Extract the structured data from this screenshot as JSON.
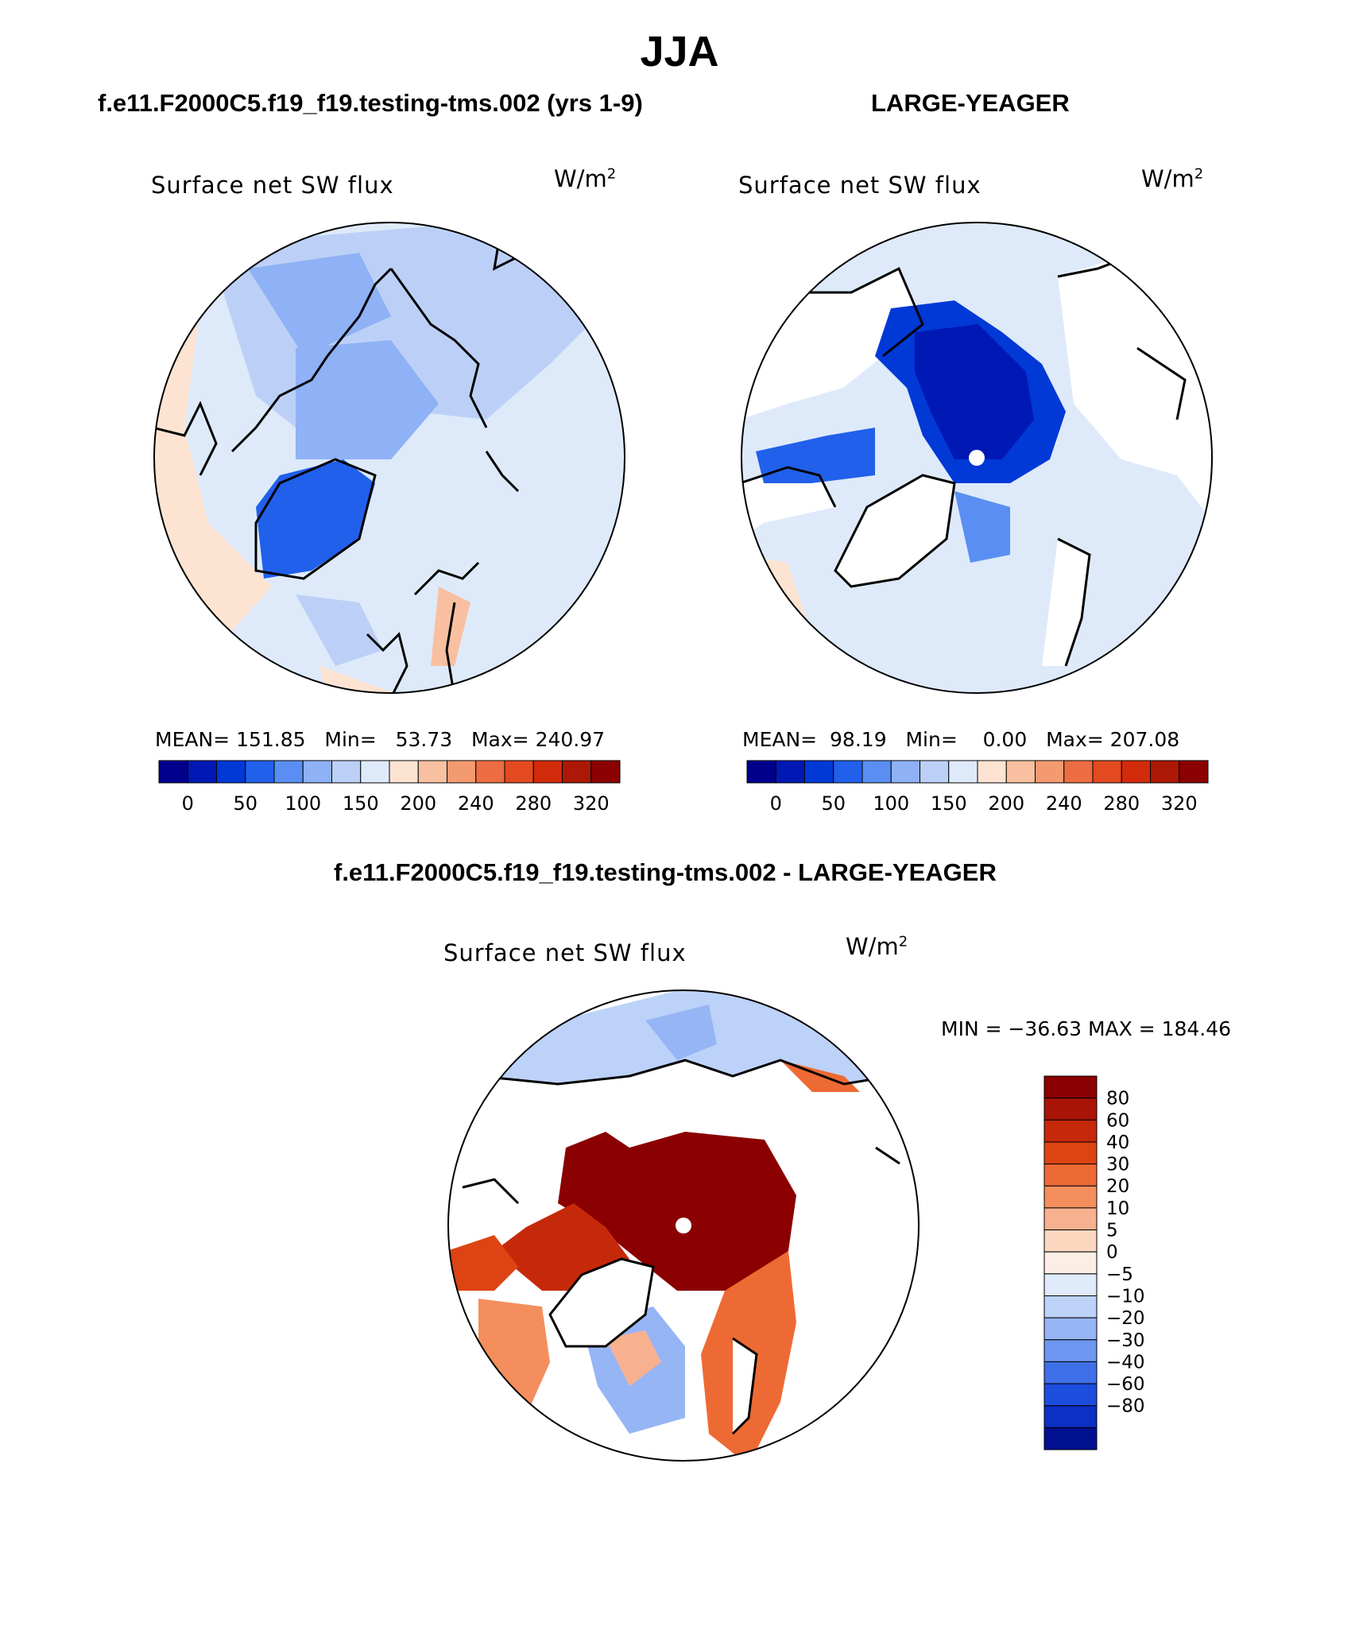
{
  "page_title": "JJA",
  "chart_data": [
    {
      "type": "heatmap",
      "panel": "model",
      "header": "f.e11.F2000C5.f19_f19.testing-tms.002 (yrs 1-9)",
      "title": "Surface net SW flux",
      "units": "W/m",
      "units_exp": "2",
      "stats": {
        "mean_label": "MEAN=",
        "mean": "151.85",
        "min_label": "Min=",
        "min": "53.73",
        "max_label": "Max=",
        "max": "240.97"
      },
      "colorbar": {
        "orientation": "horizontal",
        "ticks": [
          "0",
          "50",
          "100",
          "150",
          "200",
          "240",
          "280",
          "320"
        ],
        "colors": [
          "#00008c",
          "#0018b4",
          "#0039d6",
          "#2160ea",
          "#5a8ef2",
          "#8fb1f5",
          "#bcd0f7",
          "#deeafa",
          "#fde4d2",
          "#f8c0a0",
          "#f39a71",
          "#ec6d41",
          "#e34a1f",
          "#d22b0b",
          "#ad1806",
          "#8b0000"
        ]
      }
    },
    {
      "type": "heatmap",
      "panel": "obs",
      "header": "LARGE-YEAGER",
      "title": "Surface net SW flux",
      "units": "W/m",
      "units_exp": "2",
      "stats": {
        "mean_label": "MEAN=",
        "mean": "98.19",
        "min_label": "Min=",
        "min": "0.00",
        "max_label": "Max=",
        "max": "207.08"
      },
      "colorbar": {
        "orientation": "horizontal",
        "ticks": [
          "0",
          "50",
          "100",
          "150",
          "200",
          "240",
          "280",
          "320"
        ],
        "colors": [
          "#00008c",
          "#0018b4",
          "#0039d6",
          "#2160ea",
          "#5a8ef2",
          "#8fb1f5",
          "#bcd0f7",
          "#deeafa",
          "#fde4d2",
          "#f8c0a0",
          "#f39a71",
          "#ec6d41",
          "#e34a1f",
          "#d22b0b",
          "#ad1806",
          "#8b0000"
        ]
      }
    },
    {
      "type": "heatmap",
      "panel": "diff",
      "header": "f.e11.F2000C5.f19_f19.testing-tms.002 - LARGE-YEAGER",
      "title": "Surface net SW flux",
      "units": "W/m",
      "units_exp": "2",
      "minmax": "MIN = −36.63 MAX = 184.46",
      "colorbar": {
        "orientation": "vertical",
        "ticks": [
          "80",
          "60",
          "40",
          "30",
          "20",
          "10",
          "5",
          "0",
          "−5",
          "−10",
          "−20",
          "−30",
          "−40",
          "−60",
          "−80"
        ],
        "colors": [
          "#8b0000",
          "#a81405",
          "#c6290a",
          "#dc4414",
          "#ee6a34",
          "#f48e5d",
          "#f8b18f",
          "#fcd7c0",
          "#fbeee4",
          "#dfeafb",
          "#bdd2f8",
          "#96b5f5",
          "#6d97f0",
          "#3f6fe8",
          "#1d4ddd",
          "#0c2fc4",
          "#00108f"
        ]
      }
    }
  ]
}
